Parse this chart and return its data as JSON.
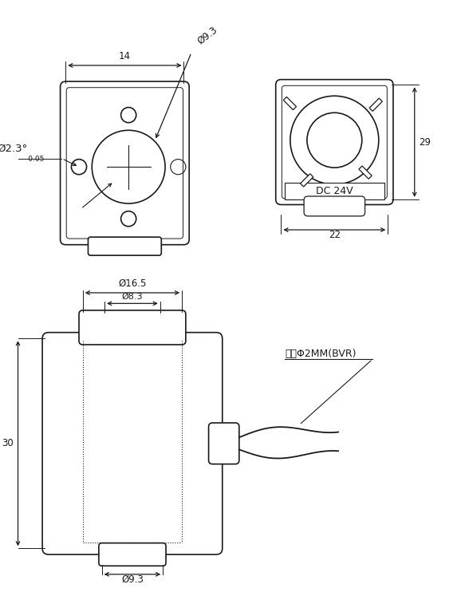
{
  "bg_color": "#ffffff",
  "line_color": "#1a1a1a",
  "dim_color": "#1a1a1a",
  "font_size": 8.5,
  "views": {
    "top_left": {
      "label_14": "14",
      "label_9p3": "Ø9.3",
      "label_2p3": "Ø2.3°",
      "tolerance": "-0.05"
    },
    "top_right": {
      "label_29": "29",
      "label_22": "22",
      "label_dc24v": "DC 24V"
    },
    "bottom": {
      "label_16p5": "Ø16.5",
      "label_8p3": "Ø8.3",
      "label_9p3": "Ø9.3",
      "label_30": "30",
      "label_wire": "外径Φ2MM(BVR)"
    }
  }
}
